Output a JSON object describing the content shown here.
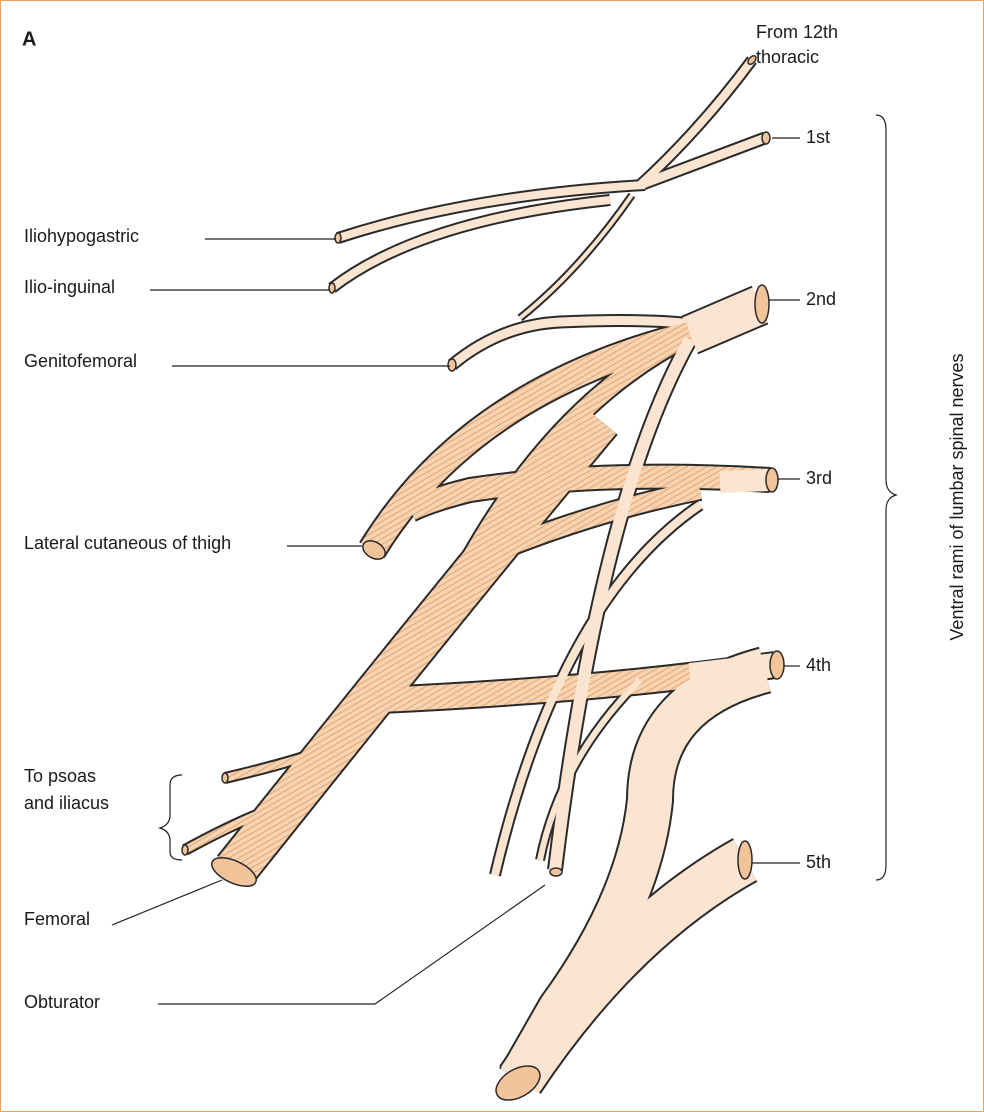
{
  "panel_label": "A",
  "source": [
    "From 12th",
    "thoracic"
  ],
  "roots": [
    "1st",
    "2nd",
    "3rd",
    "4th",
    "5th"
  ],
  "roots_label": "Ventral rami of lumbar spinal nerves",
  "branches": {
    "iliohypogastric": "Iliohypogastric",
    "ilio_inguinal": "Ilio-inguinal",
    "genitofemoral": "Genitofemoral",
    "lateral_cutaneous": "Lateral cutaneous of thigh",
    "psoas_iliacus": [
      "To psoas",
      "and iliacus"
    ],
    "femoral": "Femoral",
    "obturator": "Obturator"
  }
}
